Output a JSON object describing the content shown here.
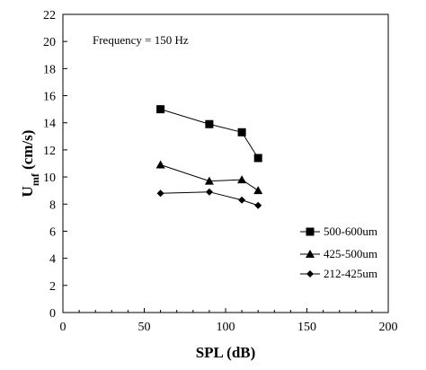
{
  "chart_data": {
    "type": "line",
    "annotation": "Frequency = 150 Hz",
    "xlabel": "SPL (dB)",
    "ylabel_main": "U",
    "ylabel_sub": "mf",
    "ylabel_unit": " (cm/s)",
    "xlim": [
      0,
      200
    ],
    "ylim": [
      0,
      22
    ],
    "x_ticks": [
      0,
      50,
      100,
      150,
      200
    ],
    "y_ticks": [
      0,
      2,
      4,
      6,
      8,
      10,
      12,
      14,
      16,
      18,
      20,
      22
    ],
    "grid": false,
    "legend_position": "right",
    "series": [
      {
        "name": "500-600um",
        "marker": "square",
        "color": "#000000",
        "x": [
          60,
          90,
          110,
          120
        ],
        "y": [
          15.0,
          13.9,
          13.3,
          11.4
        ]
      },
      {
        "name": "425-500um",
        "marker": "triangle",
        "color": "#000000",
        "x": [
          60,
          90,
          110,
          120
        ],
        "y": [
          10.9,
          9.7,
          9.8,
          9.0
        ]
      },
      {
        "name": "212-425um",
        "marker": "diamond",
        "color": "#000000",
        "x": [
          60,
          90,
          110,
          120
        ],
        "y": [
          8.8,
          8.9,
          8.3,
          7.9
        ]
      }
    ]
  }
}
